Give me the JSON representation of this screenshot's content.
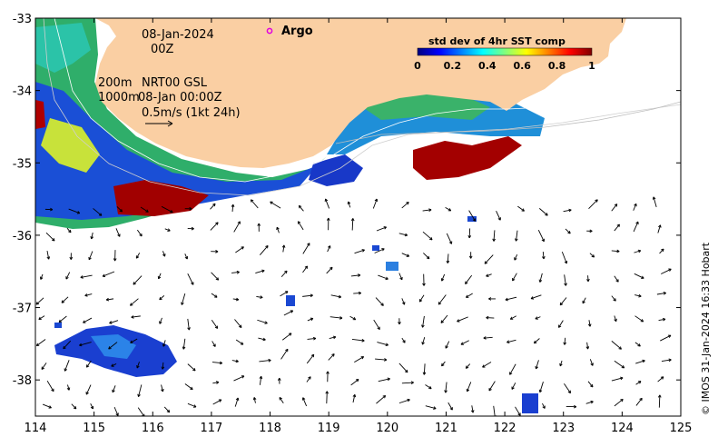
{
  "map": {
    "date_line1": "08-Jan-2024",
    "date_line2": "00Z",
    "depth_200": "200m",
    "depth_1000": "1000m",
    "product": "NRT00 GSL",
    "product_time": "08-Jan 00:00Z",
    "scale_label": "0.5m/s (1kt 24h)",
    "argo_label": "Argo",
    "credit": "© IMOS 31-Jan-2024 16:33 Hobart",
    "lon_ticks": [
      "114",
      "115",
      "116",
      "117",
      "118",
      "119",
      "120",
      "121",
      "122",
      "123",
      "124",
      "125"
    ],
    "lat_ticks": [
      "-33",
      "-34",
      "-35",
      "-36",
      "-37",
      "-38"
    ],
    "lon_range": [
      114,
      125
    ],
    "lat_range": [
      -38.5,
      -33
    ],
    "land_color": "#FACFA3",
    "argo_color": "#E000E0"
  },
  "colorbar": {
    "title": "std dev of 4hr SST comp",
    "ticks": [
      "0",
      "0.2",
      "0.4",
      "0.6",
      "0.8",
      "1"
    ],
    "range": [
      0,
      1
    ],
    "colors": [
      "#00007F",
      "#0000FF",
      "#007FFF",
      "#00FFFF",
      "#7FFF7F",
      "#FFFF00",
      "#FF7F00",
      "#FF0000",
      "#7F0000"
    ]
  }
}
